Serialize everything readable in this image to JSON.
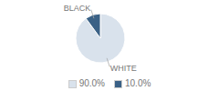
{
  "chart_data": {
    "type": "pie",
    "categories": [
      "WHITE",
      "BLACK"
    ],
    "values": [
      90.0,
      10.0
    ],
    "value_labels": [
      "90.0%",
      "10.0%"
    ],
    "colors": [
      "#d9e2ec",
      "#3a6186"
    ],
    "legend": "bottom"
  }
}
